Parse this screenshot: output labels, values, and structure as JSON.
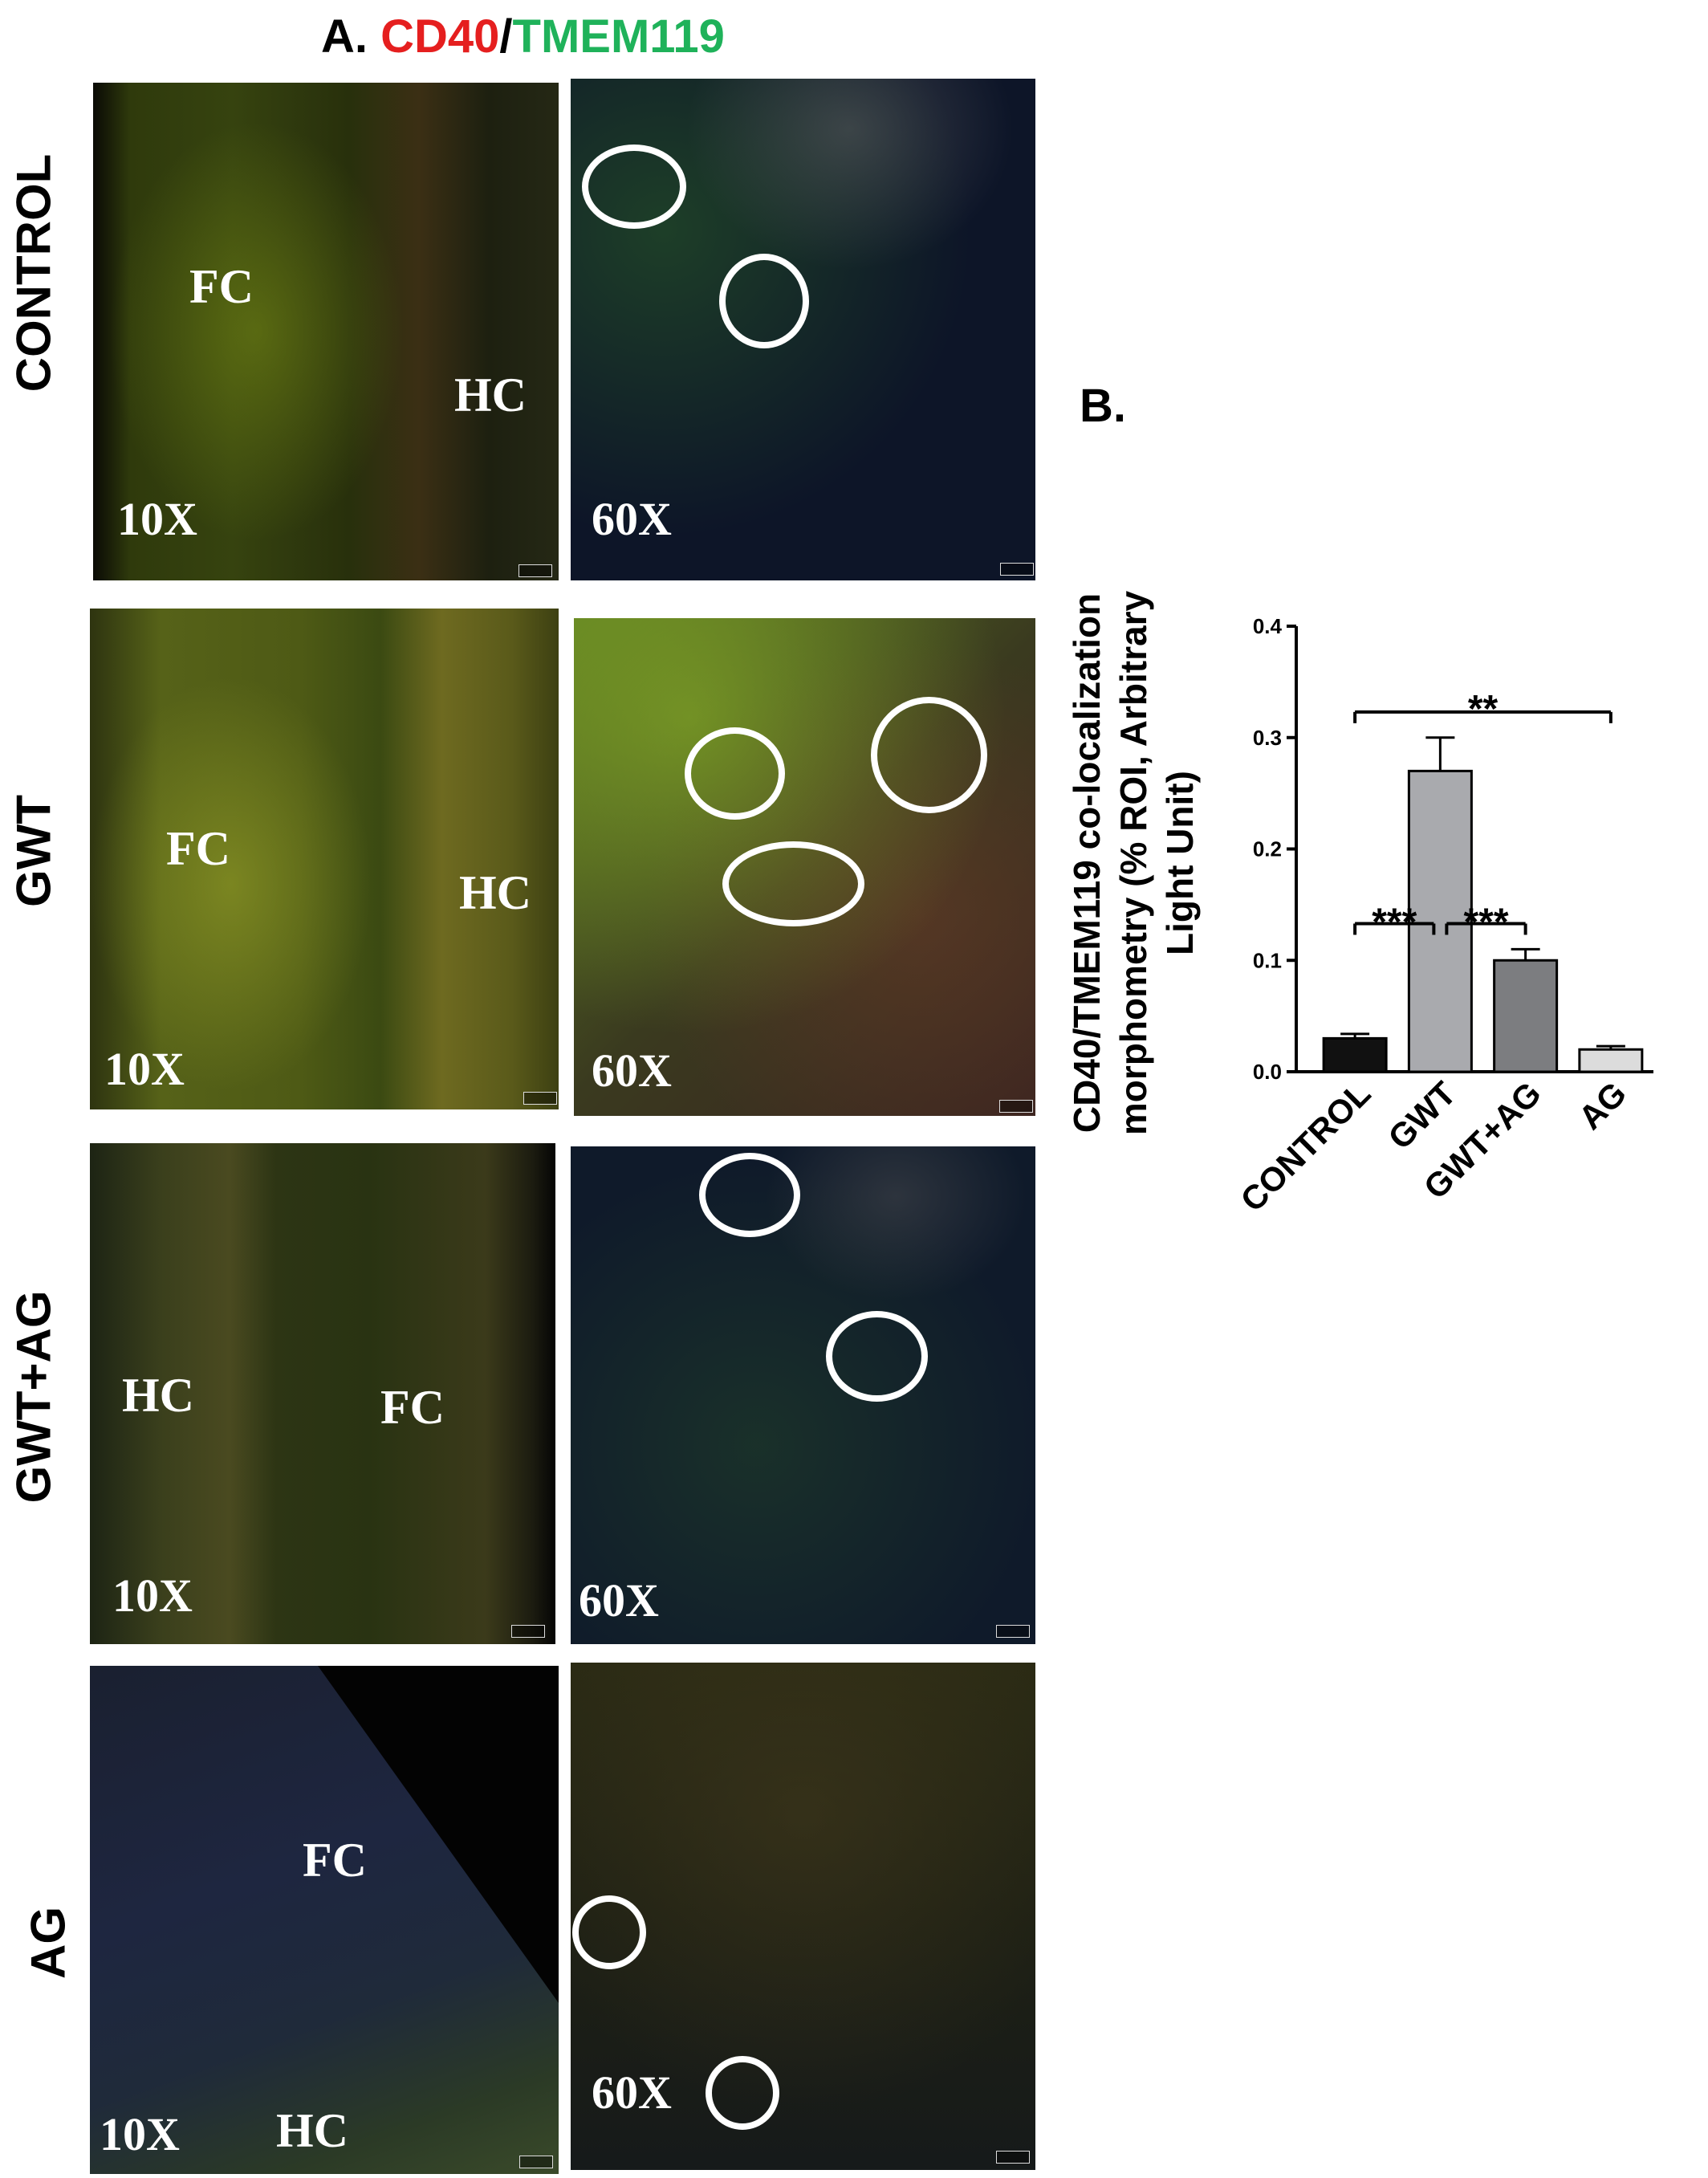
{
  "figure": {
    "panel_a_label": "A.",
    "marker_cd40": "CD40",
    "separator": "/",
    "marker_tmem119": "TMEM119",
    "panel_b_label": "B.",
    "colors": {
      "cd40": "#e51f1f",
      "tmem119": "#1fb25a"
    }
  },
  "rows": [
    {
      "label": "CONTROL",
      "low_mag": "10X",
      "high_mag": "60X",
      "regions": [
        "FC",
        "HC"
      ]
    },
    {
      "label": "GWT",
      "low_mag": "10X",
      "high_mag": "60X",
      "regions": [
        "FC",
        "HC"
      ]
    },
    {
      "label": "GWT+AG",
      "low_mag": "10X",
      "high_mag": "60X",
      "regions": [
        "HC",
        "FC"
      ]
    },
    {
      "label": "AG",
      "low_mag": "10X",
      "high_mag": "60X",
      "regions": [
        "FC",
        "HC"
      ]
    }
  ],
  "chart_data": {
    "type": "bar",
    "categories": [
      "CONTROL",
      "GWT",
      "GWT+AG",
      "AG"
    ],
    "values": [
      0.03,
      0.27,
      0.1,
      0.02
    ],
    "errors": [
      0.004,
      0.03,
      0.01,
      0.003
    ],
    "ylabel_lines": [
      "CD40/TMEM119 co-localization",
      "morphometry (% ROI, Arbitrary",
      "Light Unit)"
    ],
    "ylim": [
      0,
      0.4
    ],
    "yticks": [
      "0.0",
      "0.1",
      "0.2",
      "0.3",
      "0.4"
    ],
    "bar_colors": [
      "#111111",
      "#a9aaae",
      "#7c7d80",
      "#dcdcdc"
    ],
    "significance": [
      {
        "from": 0,
        "to": 3,
        "label": "**"
      },
      {
        "from": 0,
        "to": 1,
        "label": "***"
      },
      {
        "from": 1,
        "to": 2,
        "label": "***"
      }
    ]
  }
}
